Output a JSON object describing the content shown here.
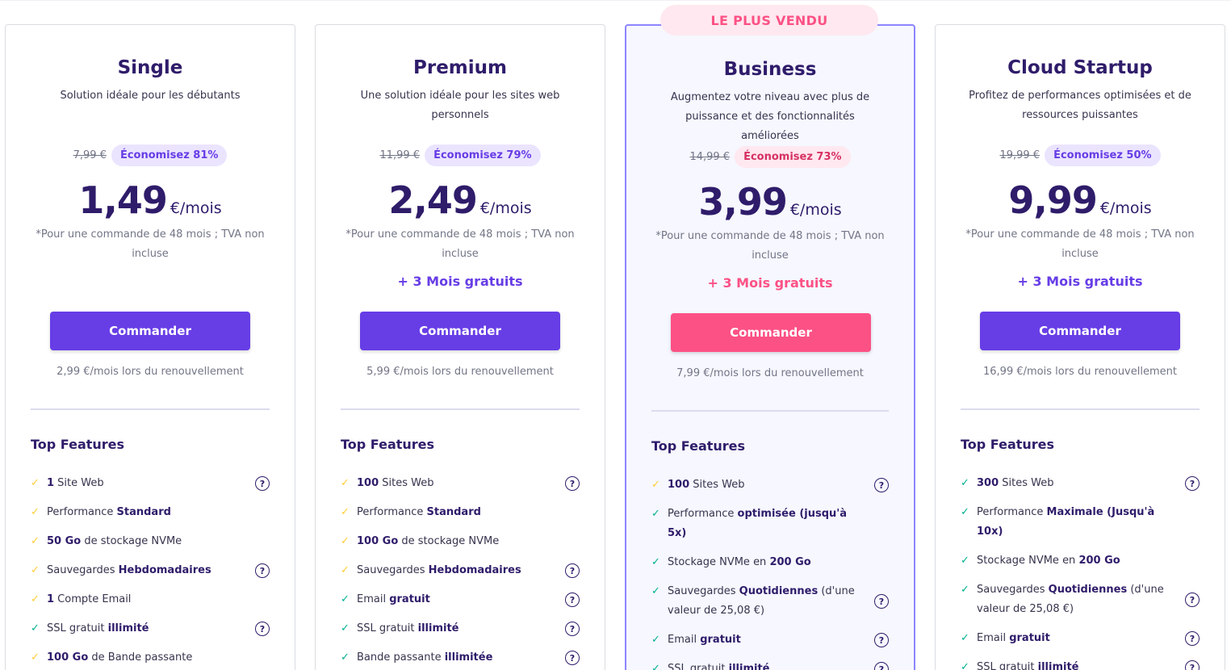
{
  "badge": "LE PLUS VENDU",
  "plans": [
    {
      "title": "Single",
      "desc": "Solution idéale pour les débutants",
      "old": "7,99 €",
      "save": "Économisez 81%",
      "amount": "1,49",
      "per": "€/mois",
      "note": "*Pour une commande de 48 mois ; TVA non incluse",
      "bonus": "",
      "cta": "Commander",
      "renew": "2,99 €/mois lors du renouvellement",
      "features_title": "Top Features",
      "features": [
        {
          "b1": "1",
          "t1": " Site Web",
          "b2": "",
          "t2": "",
          "check": "yellow",
          "help": true
        },
        {
          "b1": "",
          "t1": "Performance ",
          "b2": "Standard",
          "t2": "",
          "check": "yellow",
          "help": false
        },
        {
          "b1": "50 Go",
          "t1": " de stockage NVMe",
          "b2": "",
          "t2": "",
          "check": "yellow",
          "help": false
        },
        {
          "b1": "",
          "t1": "Sauvegardes ",
          "b2": "Hebdomadaires",
          "t2": "",
          "check": "yellow",
          "help": true
        },
        {
          "b1": "1",
          "t1": " Compte Email",
          "b2": "",
          "t2": "",
          "check": "yellow",
          "help": false
        },
        {
          "b1": "",
          "t1": "SSL gratuit ",
          "b2": "illimité",
          "t2": "",
          "check": "green",
          "help": true
        },
        {
          "b1": "100 Go",
          "t1": " de Bande passante",
          "b2": "",
          "t2": "",
          "check": "yellow",
          "help": false
        }
      ]
    },
    {
      "title": "Premium",
      "desc": "Une solution idéale pour les sites web personnels",
      "old": "11,99 €",
      "save": "Économisez 79%",
      "amount": "2,49",
      "per": "€/mois",
      "note": "*Pour une commande de 48 mois ; TVA non incluse",
      "bonus": "+ 3 Mois gratuits",
      "cta": "Commander",
      "renew": "5,99 €/mois lors du renouvellement",
      "features_title": "Top Features",
      "features": [
        {
          "b1": "100",
          "t1": " Sites Web",
          "b2": "",
          "t2": "",
          "check": "yellow",
          "help": true
        },
        {
          "b1": "",
          "t1": "Performance ",
          "b2": "Standard",
          "t2": "",
          "check": "yellow",
          "help": false
        },
        {
          "b1": "100 Go",
          "t1": " de stockage NVMe",
          "b2": "",
          "t2": "",
          "check": "yellow",
          "help": false
        },
        {
          "b1": "",
          "t1": "Sauvegardes ",
          "b2": "Hebdomadaires",
          "t2": "",
          "check": "yellow",
          "help": true
        },
        {
          "b1": "",
          "t1": "Email ",
          "b2": "gratuit",
          "t2": "",
          "check": "green",
          "help": true
        },
        {
          "b1": "",
          "t1": "SSL gratuit ",
          "b2": "illimité",
          "t2": "",
          "check": "green",
          "help": true
        },
        {
          "b1": "",
          "t1": "Bande passante ",
          "b2": "illimitée",
          "t2": "",
          "check": "green",
          "help": true
        }
      ]
    },
    {
      "title": "Business",
      "desc": "Augmentez votre niveau avec plus de puissance et des fonctionnalités améliorées",
      "old": "14,99 €",
      "save": "Économisez 73%",
      "amount": "3,99",
      "per": "€/mois",
      "note": "*Pour une commande de 48 mois ; TVA non incluse",
      "bonus": "+ 3 Mois gratuits",
      "cta": "Commander",
      "renew": "7,99 €/mois lors du renouvellement",
      "features_title": "Top Features",
      "features": [
        {
          "b1": "100",
          "t1": " Sites Web",
          "b2": "",
          "t2": "",
          "check": "yellow",
          "help": true
        },
        {
          "b1": "",
          "t1": "Performance ",
          "b2": "optimisée (jusqu'à 5x)",
          "t2": "",
          "check": "green",
          "help": false
        },
        {
          "b1": "",
          "t1": "Stockage NVMe en ",
          "b2": "200 Go",
          "t2": "",
          "check": "green",
          "help": false
        },
        {
          "b1": "",
          "t1": "Sauvegardes ",
          "b2": "Quotidiennes",
          "t2": " (d'une valeur de 25,08 €)",
          "check": "green",
          "help": true,
          "tall": true
        },
        {
          "b1": "",
          "t1": "Email ",
          "b2": "gratuit",
          "t2": "",
          "check": "green",
          "help": true
        },
        {
          "b1": "",
          "t1": "SSL gratuit ",
          "b2": "illimité",
          "t2": "",
          "check": "green",
          "help": true
        }
      ]
    },
    {
      "title": "Cloud Startup",
      "desc": "Profitez de performances optimisées et de ressources puissantes",
      "old": "19,99 €",
      "save": "Économisez 50%",
      "amount": "9,99",
      "per": "€/mois",
      "note": "*Pour une commande de 48 mois ; TVA non incluse",
      "bonus": "+ 3 Mois gratuits",
      "cta": "Commander",
      "renew": "16,99 €/mois lors du renouvellement",
      "features_title": "Top Features",
      "features": [
        {
          "b1": "300",
          "t1": " Sites Web",
          "b2": "",
          "t2": "",
          "check": "green",
          "help": true
        },
        {
          "b1": "",
          "t1": "Performance ",
          "b2": "Maximale (Jusqu'à 10x)",
          "t2": "",
          "check": "green",
          "help": false
        },
        {
          "b1": "",
          "t1": "Stockage NVMe en ",
          "b2": "200 Go",
          "t2": "",
          "check": "green",
          "help": false
        },
        {
          "b1": "",
          "t1": "Sauvegardes ",
          "b2": "Quotidiennes",
          "t2": " (d'une valeur de 25,08 €)",
          "check": "green",
          "help": true,
          "tall": true
        },
        {
          "b1": "",
          "t1": "Email ",
          "b2": "gratuit",
          "t2": "",
          "check": "green",
          "help": true
        },
        {
          "b1": "",
          "t1": "SSL gratuit ",
          "b2": "illimité",
          "t2": "",
          "check": "green",
          "help": true
        }
      ]
    }
  ]
}
